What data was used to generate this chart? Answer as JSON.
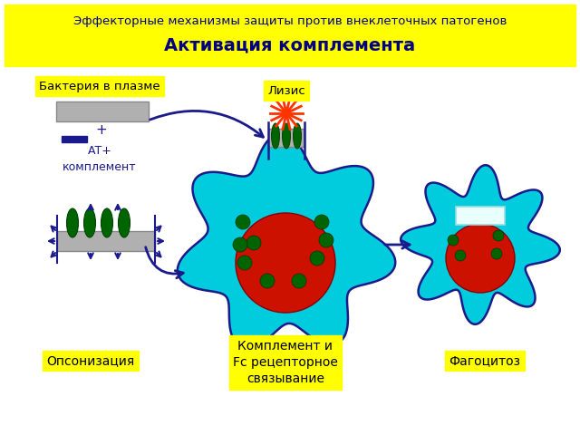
{
  "title_line1": "Эффекторные механизмы защиты против внеклеточных патогенов",
  "title_line2": "Активация комплемента",
  "label_bakteria": "Бактерия в плазме",
  "label_lysis": "Лизис",
  "label_opson": "Опсонизация",
  "label_komplement": "Комплемент и\nFc рецепторное\nсвязывание",
  "label_fagocit": "Фагоцитоз",
  "label_at": "АТ+\nкомплемент",
  "yellow": "#FFFF00",
  "cyan_cell": "#00CCDD",
  "dark_blue": "#1A1A8C",
  "navy": "#000080",
  "green_dark": "#006400",
  "gray_bact": "#B0B0B0",
  "red_cell": "#CC1100",
  "white": "#FFFFFF",
  "bg": "#FFFFFF",
  "orange_red": "#FF3300"
}
